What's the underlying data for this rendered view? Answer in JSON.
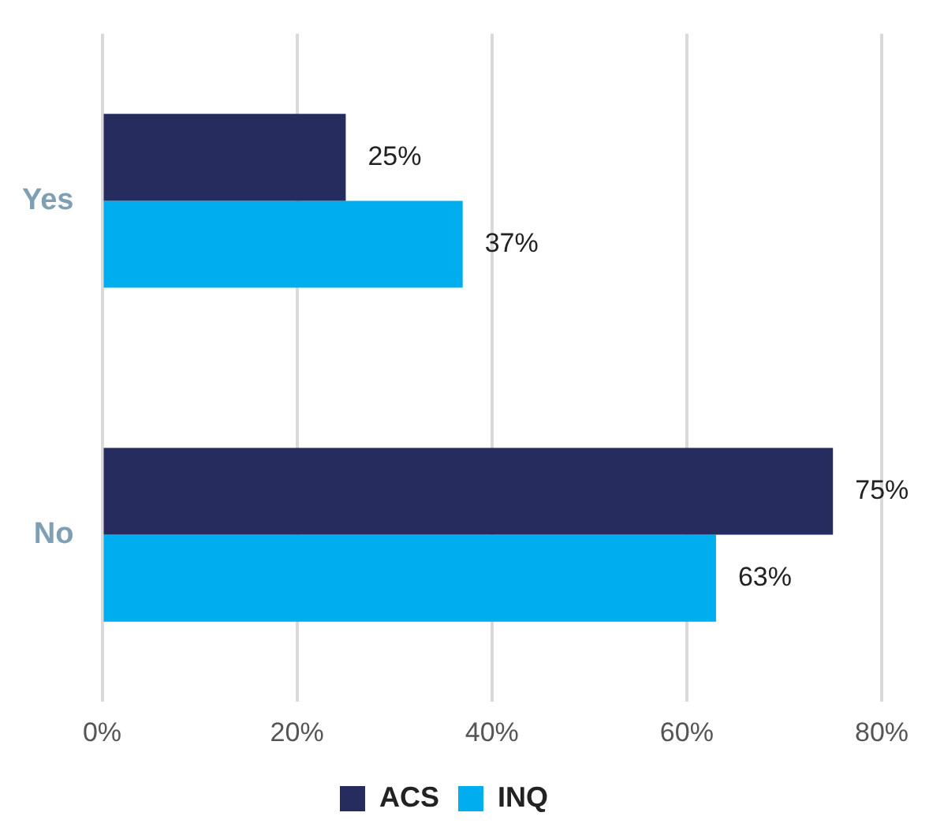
{
  "chart_data": {
    "type": "bar",
    "orientation": "horizontal",
    "categories": [
      "Yes",
      "No"
    ],
    "series": [
      {
        "name": "ACS",
        "color": "#262d5e",
        "values": [
          25,
          75
        ],
        "value_labels": [
          "25%",
          "75%"
        ]
      },
      {
        "name": "INQ",
        "color": "#00adef",
        "values": [
          37,
          63
        ],
        "value_labels": [
          "37%",
          "63%"
        ]
      }
    ],
    "xlim": [
      0,
      80
    ],
    "xticks": [
      {
        "value": 0,
        "label": "0%"
      },
      {
        "value": 20,
        "label": "20%"
      },
      {
        "value": 40,
        "label": "40%"
      },
      {
        "value": 60,
        "label": "60%"
      },
      {
        "value": 80,
        "label": "80%"
      }
    ],
    "grid": "x",
    "legend": "bottom"
  }
}
